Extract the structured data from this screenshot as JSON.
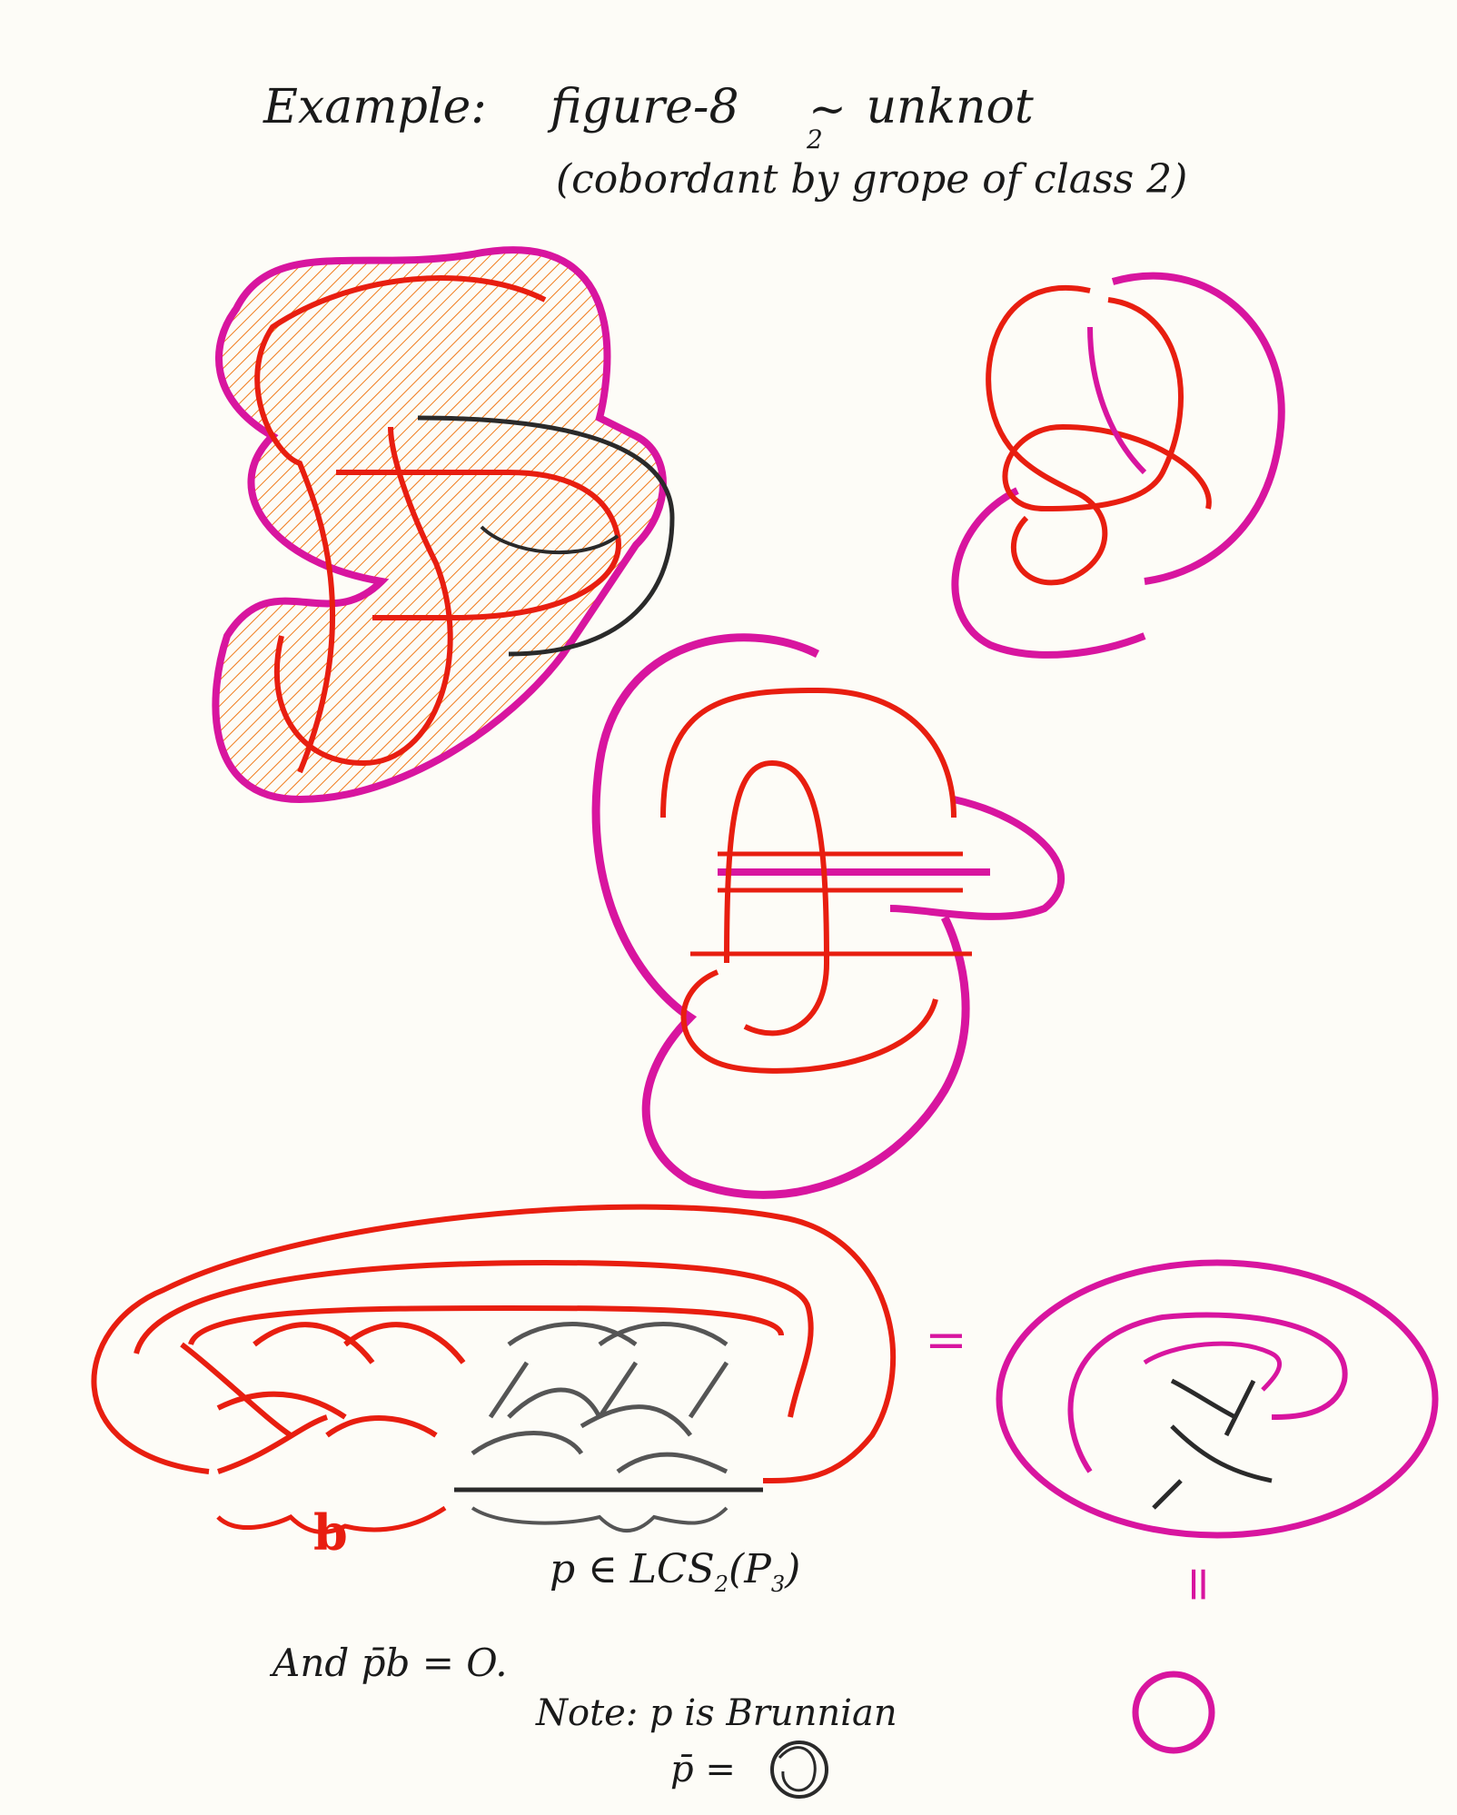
{
  "header": {
    "example_label": "Example:",
    "left_term": "figure-8",
    "relation": "~",
    "relation_subscript": "2",
    "right_term": "unknot",
    "subtitle": "(cobordant by grope of class 2)"
  },
  "braid_section": {
    "label_b": "b",
    "label_p": "p ∈ LCS",
    "label_p_sub": "2",
    "label_p_tail": "(P",
    "label_p_tail_sub": "3",
    "label_p_close": ")",
    "equals_horizontal": "=",
    "equals_vertical": "="
  },
  "footer": {
    "and_line": "And  p̄b = O.",
    "note_line": "Note: p is Brunnian",
    "pbar_line": "p̄ ="
  },
  "colors": {
    "red_knot": "#e81e10",
    "magenta_band": "#d8159f",
    "orange_hatch": "#f07a1a",
    "black_strand": "#2a2a2a",
    "gray_strand": "#555555"
  }
}
